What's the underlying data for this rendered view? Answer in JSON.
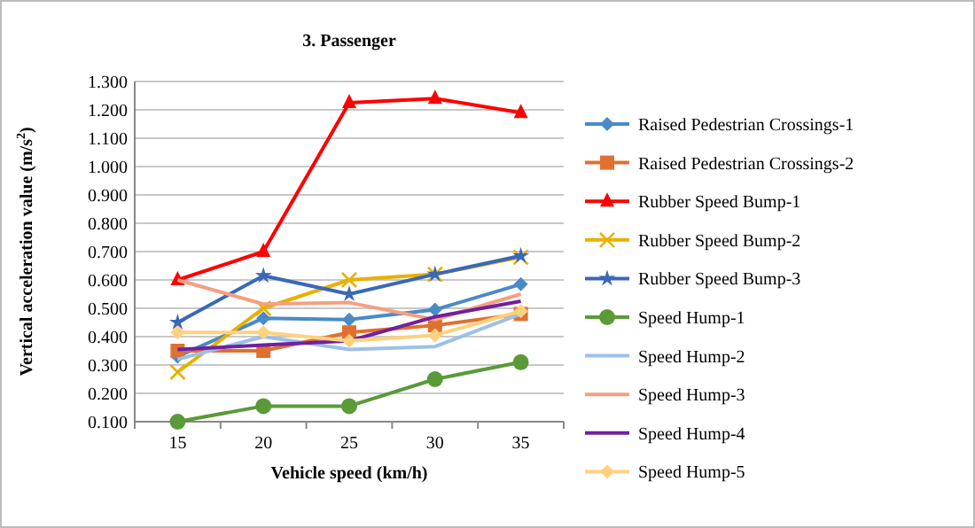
{
  "chart_data": {
    "type": "line",
    "title": "3. Passenger",
    "xlabel": "Vehicle speed (km/h)",
    "ylabel": "Vertical acceleration value (m/s$^{2}$)",
    "categories": [
      "15",
      "20",
      "25",
      "30",
      "35"
    ],
    "ylim": [
      0.1,
      1.3
    ],
    "yticks": [
      {
        "value": 0.1,
        "label": "0.100"
      },
      {
        "value": 0.2,
        "label": "0.200"
      },
      {
        "value": 0.3,
        "label": "0.300"
      },
      {
        "value": 0.4,
        "label": "0.400"
      },
      {
        "value": 0.5,
        "label": "0.500"
      },
      {
        "value": 0.6,
        "label": "0.600"
      },
      {
        "value": 0.7,
        "label": "0.700"
      },
      {
        "value": 0.8,
        "label": "0.800"
      },
      {
        "value": 0.9,
        "label": "0.900"
      },
      {
        "value": 1.0,
        "label": "1.000"
      },
      {
        "value": 1.1,
        "label": "1.100"
      },
      {
        "value": 1.2,
        "label": "1.200"
      },
      {
        "value": 1.3,
        "label": "1.300"
      }
    ],
    "grid": "y",
    "legend": "right",
    "series": [
      {
        "name": "Raised Pedestrian Crossings-1",
        "color": "#4a8ac8",
        "marker": "diamond",
        "values": [
          0.33,
          0.465,
          0.46,
          0.495,
          0.585
        ]
      },
      {
        "name": "Raised Pedestrian Crossings-2",
        "color": "#e07030",
        "marker": "square",
        "values": [
          0.35,
          0.35,
          0.415,
          0.44,
          0.48
        ]
      },
      {
        "name": "Rubber Speed Bump-1",
        "color": "#ff0000",
        "marker": "triangle",
        "values": [
          0.6,
          0.7,
          1.225,
          1.24,
          1.19
        ]
      },
      {
        "name": "Rubber Speed Bump-2",
        "color": "#e8b000",
        "marker": "cross",
        "values": [
          0.275,
          0.5,
          0.6,
          0.62,
          0.68
        ]
      },
      {
        "name": "Rubber Speed Bump-3",
        "color": "#3a68b8",
        "marker": "star",
        "values": [
          0.45,
          0.615,
          0.55,
          0.62,
          0.685
        ]
      },
      {
        "name": "Speed Hump-1",
        "color": "#5a9a38",
        "marker": "circle",
        "values": [
          0.1,
          0.155,
          0.155,
          0.25,
          0.31
        ]
      },
      {
        "name": "Speed Hump-2",
        "color": "#9cc0e8",
        "marker": "none",
        "values": [
          0.32,
          0.4,
          0.355,
          0.365,
          0.48
        ]
      },
      {
        "name": "Speed Hump-3",
        "color": "#f4a080",
        "marker": "none",
        "values": [
          0.6,
          0.515,
          0.52,
          0.46,
          0.55
        ]
      },
      {
        "name": "Speed Hump-4",
        "color": "#7020a0",
        "marker": "none",
        "values": [
          0.355,
          0.37,
          0.385,
          0.47,
          0.525
        ]
      },
      {
        "name": "Speed Hump-5",
        "color": "#ffd080",
        "marker": "diamond",
        "values": [
          0.415,
          0.415,
          0.385,
          0.405,
          0.49
        ]
      }
    ]
  }
}
